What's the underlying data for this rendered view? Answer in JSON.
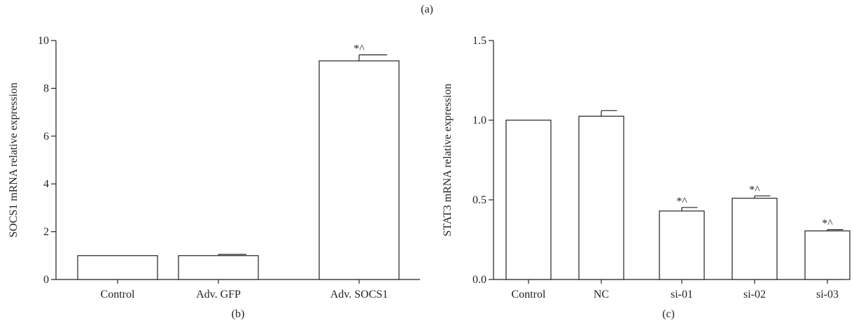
{
  "figure": {
    "top_label": "(a)"
  },
  "chart_data": [
    {
      "type": "bar",
      "panel_label": "(b)",
      "ylabel": "SOCS1 mRNA relative expression",
      "xlabel": "",
      "categories": [
        "Control",
        "Adv. GFP",
        "Adv. SOCS1"
      ],
      "values": [
        1.0,
        1.0,
        9.15
      ],
      "errors": [
        0,
        0.05,
        0.25
      ],
      "annotations": [
        "",
        "",
        "*^"
      ],
      "ylim": [
        0,
        10
      ],
      "yticks": [
        0,
        2,
        4,
        6,
        8,
        10
      ],
      "ytick_labels": [
        "0",
        "2",
        "4",
        "6",
        "8",
        "10"
      ],
      "grid": false,
      "colors": {
        "bar_fill": "#ffffff",
        "bar_stroke": "#231f20"
      }
    },
    {
      "type": "bar",
      "panel_label": "(c)",
      "ylabel": "STAT3 mRNA relative expression",
      "xlabel": "",
      "categories": [
        "Control",
        "NC",
        "si-01",
        "si-02",
        "si-03"
      ],
      "values": [
        1.0,
        1.025,
        0.43,
        0.51,
        0.305
      ],
      "errors": [
        0,
        0.035,
        0.022,
        0.015,
        0.008
      ],
      "annotations": [
        "",
        "",
        "*^",
        "*^",
        "*^"
      ],
      "ylim": [
        0,
        1.5
      ],
      "yticks": [
        0,
        0.5,
        1.0,
        1.5
      ],
      "ytick_labels": [
        "0.0",
        "0.5",
        "1.0",
        "1.5"
      ],
      "grid": false,
      "colors": {
        "bar_fill": "#ffffff",
        "bar_stroke": "#231f20"
      }
    }
  ]
}
